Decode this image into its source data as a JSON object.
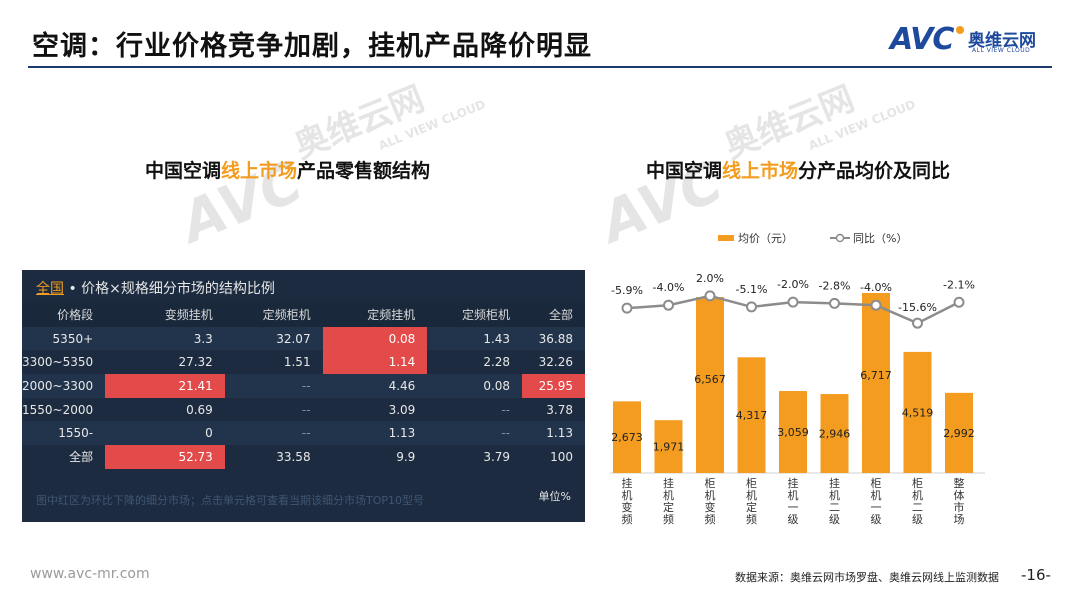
{
  "header": {
    "title": "空调：行业价格竞争加剧，挂机产品降价明显",
    "logo": {
      "brand": "AVC",
      "cn": "奥维云网",
      "en": "ALL VIEW CLOUD"
    }
  },
  "left": {
    "title_prefix": "中国空调",
    "title_highlight": "线上市场",
    "title_suffix": "产品零售额结构",
    "panel": {
      "scope_link": "全国",
      "heading": " • 价格×规格细分市场的结构比例",
      "columns": [
        "价格段",
        "变频挂机",
        "定频柜机",
        "定频挂机",
        "定频柜机",
        "全部"
      ],
      "rows": [
        {
          "label": "5350+",
          "cells": [
            "3.3",
            "32.07",
            "0.08",
            "1.43",
            "36.88"
          ]
        },
        {
          "label": "3300~5350",
          "cells": [
            "27.32",
            "1.51",
            "1.14",
            "2.28",
            "32.26"
          ]
        },
        {
          "label": "2000~3300",
          "cells": [
            "21.41",
            "--",
            "4.46",
            "0.08",
            "25.95"
          ]
        },
        {
          "label": "1550~2000",
          "cells": [
            "0.69",
            "--",
            "3.09",
            "--",
            "3.78"
          ]
        },
        {
          "label": "1550-",
          "cells": [
            "0",
            "--",
            "1.13",
            "--",
            "1.13"
          ]
        },
        {
          "label": "全部",
          "cells": [
            "52.73",
            "33.58",
            "9.9",
            "3.79",
            "100"
          ]
        }
      ],
      "highlight_color": "#e34b4b",
      "note": "图中红区为环比下降的细分市场；点击单元格可查看当期该细分市场TOP10型号",
      "unit": "单位%"
    }
  },
  "right": {
    "title_prefix": "中国空调",
    "title_highlight": "线上市场",
    "title_suffix": "分产品均价及同比"
  },
  "chart_data": {
    "type": "bar",
    "categories": [
      "挂机变频",
      "挂机定频",
      "柜机变频",
      "柜机定频",
      "挂机一级",
      "挂机二级",
      "柜机一级",
      "柜机二级",
      "整体市场"
    ],
    "series": [
      {
        "name": "均价（元）",
        "type": "bar",
        "color": "#f39c1f",
        "values": [
          2673,
          1971,
          6567,
          4317,
          3059,
          2946,
          6717,
          4519,
          2992
        ]
      },
      {
        "name": "同比（%）",
        "type": "line",
        "color": "#8c8c8c",
        "values": [
          -5.9,
          -4.0,
          2.0,
          -5.1,
          -2.0,
          -2.8,
          -4.0,
          -15.6,
          -2.1
        ]
      }
    ],
    "bar_labels": [
      "2,673",
      "1,971",
      "6,567",
      "4,317",
      "3,059",
      "2,946",
      "6,717",
      "4,519",
      "2,992"
    ],
    "line_labels": [
      "-5.9%",
      "-4.0%",
      "2.0%",
      "-5.1%",
      "-2.0%",
      "-2.8%",
      "-4.0%",
      "-15.6%",
      "-2.1%"
    ],
    "legend_position": "top"
  },
  "watermark": {
    "cn": "奥维云网",
    "en": "ALL VIEW CLOUD"
  },
  "footer": {
    "url": "www.avc-mr.com",
    "source": "数据来源：奥维云网市场罗盘、奥维云网线上监测数据",
    "page": "-16-"
  }
}
